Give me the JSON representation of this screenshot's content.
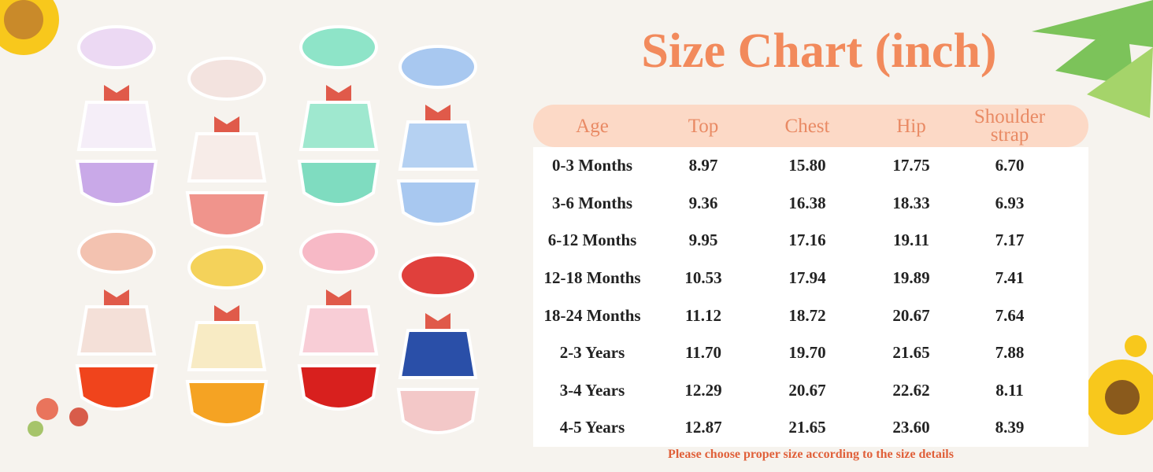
{
  "header": {
    "title": "Size Chart (inch)"
  },
  "table": {
    "columns": [
      "Age",
      "Top",
      "Chest",
      "Hip",
      "Shoulder strap"
    ],
    "rows": [
      [
        "0-3 Months",
        "8.97",
        "15.80",
        "17.75",
        "6.70"
      ],
      [
        "3-6 Months",
        "9.36",
        "16.38",
        "18.33",
        "6.93"
      ],
      [
        "6-12 Months",
        "9.95",
        "17.16",
        "19.11",
        "7.17"
      ],
      [
        "12-18 Months",
        "10.53",
        "17.94",
        "19.89",
        "7.41"
      ],
      [
        "18-24 Months",
        "11.12",
        "18.72",
        "20.67",
        "7.64"
      ],
      [
        "2-3 Years",
        "11.70",
        "19.70",
        "21.65",
        "7.88"
      ],
      [
        "3-4 Years",
        "12.29",
        "20.67",
        "22.62",
        "8.11"
      ],
      [
        "4-5 Years",
        "12.87",
        "21.65",
        "23.60",
        "8.39"
      ]
    ]
  },
  "footer": {
    "note": "Please choose proper size according to the size details"
  }
}
